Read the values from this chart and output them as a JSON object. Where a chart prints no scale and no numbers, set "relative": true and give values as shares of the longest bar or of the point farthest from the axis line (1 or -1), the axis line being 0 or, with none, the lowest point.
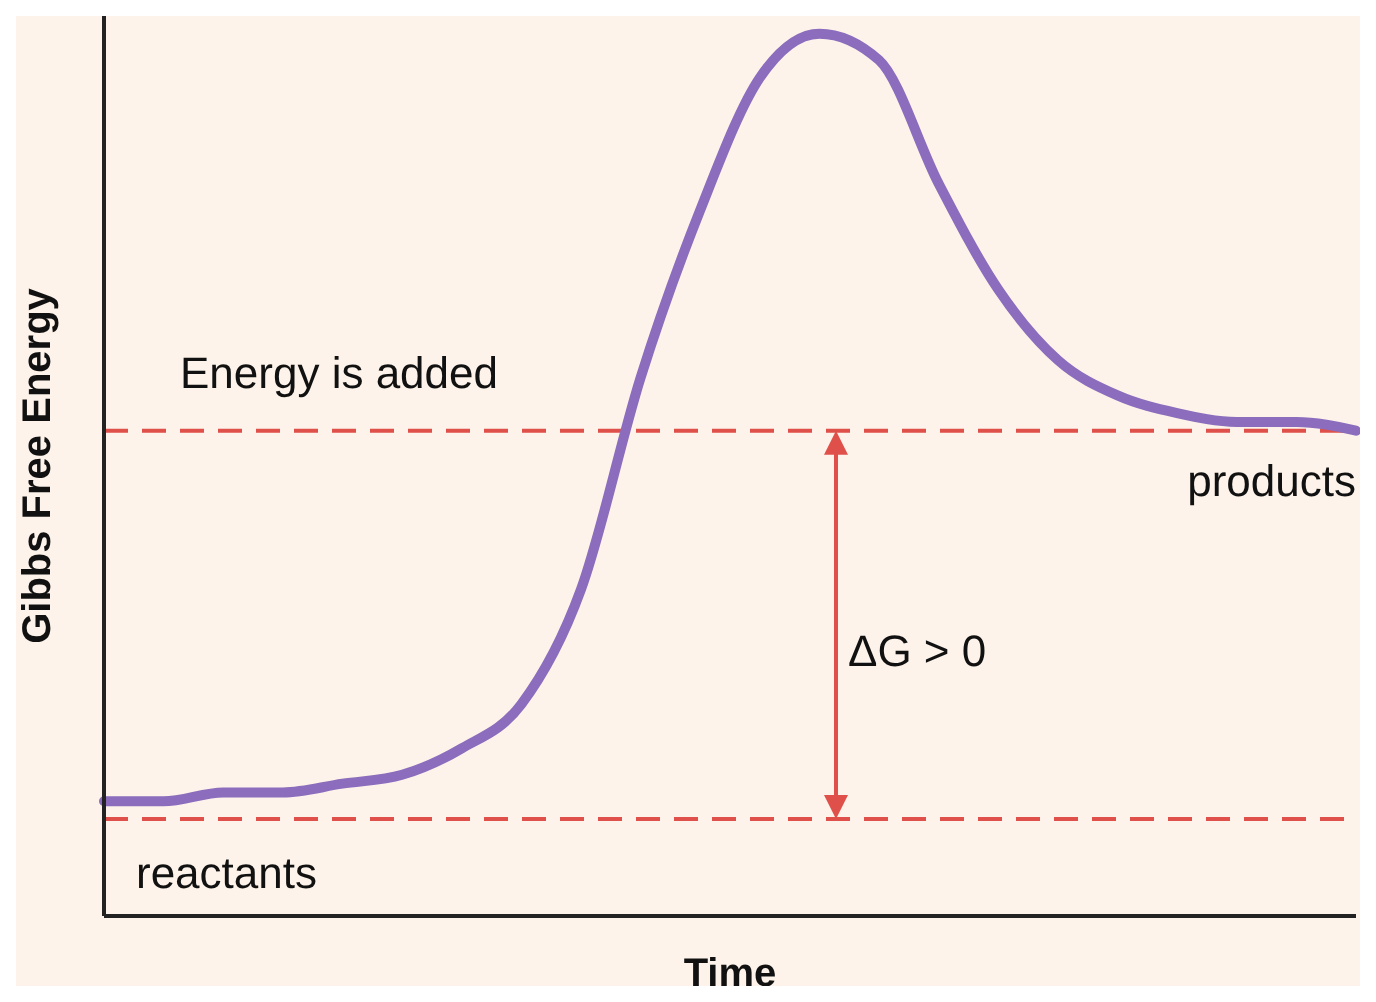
{
  "chart_data": {
    "type": "line",
    "relative": true,
    "xlabel": "Time",
    "ylabel": "Gibbs Free Energy",
    "categories": [
      null,
      null,
      null,
      null,
      null,
      null,
      null,
      null,
      null,
      null,
      null,
      null,
      null,
      null,
      null,
      null,
      null,
      null,
      null,
      null,
      null,
      null
    ],
    "series": [
      {
        "color": "#8b6cbd",
        "values": [
          0.13,
          0.13,
          0.14,
          0.14,
          0.15,
          0.16,
          0.19,
          0.24,
          0.37,
          0.61,
          0.8,
          0.95,
          1,
          0.97,
          0.83,
          0.71,
          0.63,
          0.59,
          0.57,
          0.56,
          0.56,
          0.55
        ]
      }
    ],
    "ref_lines": [
      {
        "axis": "y",
        "value": 0.55,
        "color": "#e0504a",
        "line_style": "dashed"
      },
      {
        "axis": "y",
        "value": 0.11,
        "color": "#e0504a",
        "line_style": "dashed"
      }
    ],
    "annotations": [
      "Energy is added",
      "products",
      "reactants",
      "ΔG > 0"
    ],
    "marker": "none",
    "line_style": "solid"
  }
}
